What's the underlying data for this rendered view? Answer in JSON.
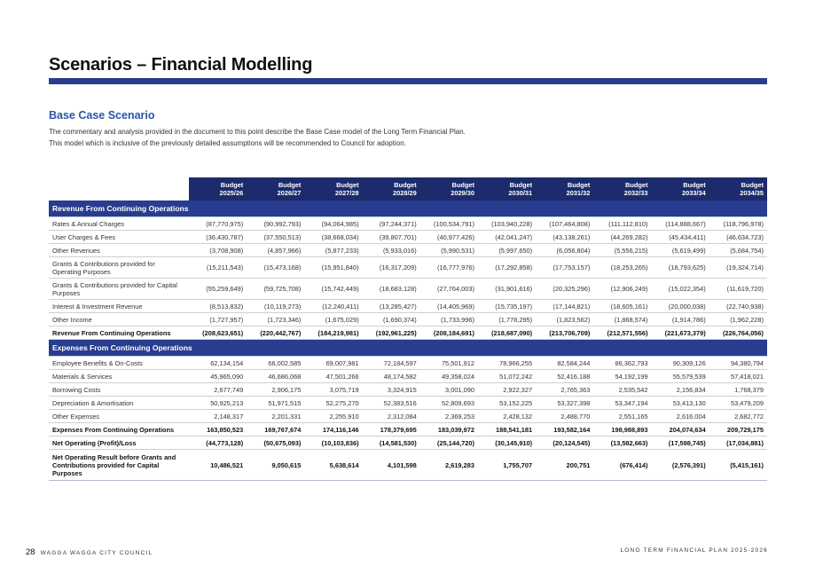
{
  "header": {
    "title": "Scenarios – Financial Modelling"
  },
  "section": {
    "title": "Base Case Scenario",
    "intro": "The commentary and analysis provided in the document to this point describe the Base Case model of the Long Term Financial Plan. This model which is inclusive of the previously detailed assumptions will be recommended to Council for adoption."
  },
  "table": {
    "years": [
      {
        "l1": "Budget",
        "l2": "2025/26"
      },
      {
        "l1": "Budget",
        "l2": "2026/27"
      },
      {
        "l1": "Budget",
        "l2": "2027/28"
      },
      {
        "l1": "Budget",
        "l2": "2028/29"
      },
      {
        "l1": "Budget",
        "l2": "2029/30"
      },
      {
        "l1": "Budget",
        "l2": "2030/31"
      },
      {
        "l1": "Budget",
        "l2": "2031/32"
      },
      {
        "l1": "Budget",
        "l2": "2032/33"
      },
      {
        "l1": "Budget",
        "l2": "2033/34"
      },
      {
        "l1": "Budget",
        "l2": "2034/35"
      }
    ],
    "revenue_heading": "Revenue From Continuing Operations",
    "revenue_rows": [
      {
        "label": "Rates & Annual Charges",
        "values": [
          "(87,770,975)",
          "(90,992,793)",
          "(94,064,985)",
          "(97,244,371)",
          "(100,534,791)",
          "(103,940,228)",
          "(107,464,808)",
          "(111,112,810)",
          "(114,888,667)",
          "(118,796,978)"
        ]
      },
      {
        "label": "User Charges & Fees",
        "values": [
          "(36,430,787)",
          "(37,550,513)",
          "(38,668,034)",
          "(39,807,701)",
          "(40,977,426)",
          "(42,041,247)",
          "(43,138,261)",
          "(44,269,282)",
          "(45,434,411)",
          "(46,634,723)"
        ]
      },
      {
        "label": "Other Revenues",
        "values": [
          "(3,708,908)",
          "(4,857,966)",
          "(5,877,233)",
          "(5,933,016)",
          "(5,990,531)",
          "(5,997,650)",
          "(6,056,804)",
          "(5,556,215)",
          "(5,619,499)",
          "(5,684,754)"
        ]
      },
      {
        "label": "Grants & Contributions provided for Operating Purposes",
        "values": [
          "(15,211,543)",
          "(15,473,168)",
          "(15,951,840)",
          "(16,317,209)",
          "(16,777,976)",
          "(17,292,858)",
          "(17,753,157)",
          "(18,253,265)",
          "(18,793,625)",
          "(19,324,714)"
        ]
      },
      {
        "label": "Grants & Contributions provided for Capital Purposes",
        "values": [
          "(55,259,649)",
          "(59,725,708)",
          "(15,742,449)",
          "(18,683,128)",
          "(27,764,003)",
          "(31,901,616)",
          "(20,325,296)",
          "(12,906,249)",
          "(15,022,354)",
          "(11,619,720)"
        ]
      },
      {
        "label": "Interest & Investment Revenue",
        "values": [
          "(8,513,832)",
          "(10,119,273)",
          "(12,240,411)",
          "(13,285,427)",
          "(14,405,969)",
          "(15,735,197)",
          "(17,144,821)",
          "(18,605,161)",
          "(20,000,038)",
          "(22,740,938)"
        ]
      },
      {
        "label": "Other Income",
        "values": [
          "(1,727,957)",
          "(1,723,346)",
          "(1,675,029)",
          "(1,690,374)",
          "(1,733,996)",
          "(1,778,295)",
          "(1,823,562)",
          "(1,868,574)",
          "(1,914,786)",
          "(1,962,228)"
        ]
      }
    ],
    "revenue_total": {
      "label": "Revenue From Continuing Operations",
      "values": [
        "(208,623,651)",
        "(220,442,767)",
        "(184,219,981)",
        "(192,961,225)",
        "(208,184,691)",
        "(218,687,090)",
        "(213,706,709)",
        "(212,571,556)",
        "(221,673,379)",
        "(226,764,056)"
      ]
    },
    "expenses_heading": "Expenses From Continuing Operations",
    "expense_rows": [
      {
        "label": "Employee Benefits & On-Costs",
        "values": [
          "62,134,154",
          "66,002,585",
          "69,007,981",
          "72,184,597",
          "75,501,912",
          "78,966,255",
          "82,584,244",
          "86,362,793",
          "90,309,126",
          "94,380,794"
        ]
      },
      {
        "label": "Materials & Services",
        "values": [
          "45,965,090",
          "46,686,068",
          "47,501,266",
          "48,174,582",
          "49,358,024",
          "51,072,242",
          "52,416,188",
          "54,192,199",
          "55,579,539",
          "57,418,021"
        ]
      },
      {
        "label": "Borrowing Costs",
        "values": [
          "2,677,749",
          "2,906,175",
          "3,075,719",
          "3,324,915",
          "3,001,090",
          "2,922,327",
          "2,765,363",
          "2,535,542",
          "2,156,834",
          "1,768,379"
        ]
      },
      {
        "label": "Depreciation & Amortisation",
        "values": [
          "50,925,213",
          "51,971,515",
          "52,275,270",
          "52,383,516",
          "52,809,693",
          "53,152,225",
          "53,327,398",
          "53,347,194",
          "53,413,130",
          "53,479,209"
        ]
      },
      {
        "label": "Other Expenses",
        "values": [
          "2,148,317",
          "2,201,331",
          "2,255,910",
          "2,312,084",
          "2,369,253",
          "2,428,132",
          "2,488,770",
          "2,551,165",
          "2,616,004",
          "2,682,772"
        ]
      }
    ],
    "expenses_total": {
      "label": "Expenses From Continuing Operations",
      "values": [
        "163,850,523",
        "169,767,674",
        "174,116,146",
        "178,379,695",
        "183,039,972",
        "188,541,181",
        "193,582,164",
        "198,988,893",
        "204,074,634",
        "209,729,175"
      ]
    },
    "net_operating": {
      "label": "Net Operating (Profit)/Loss",
      "values": [
        "(44,773,128)",
        "(50,675,093)",
        "(10,103,836)",
        "(14,581,530)",
        "(25,144,720)",
        "(30,145,910)",
        "(20,124,545)",
        "(13,582,663)",
        "(17,598,745)",
        "(17,034,881)"
      ]
    },
    "net_result": {
      "label": "Net Operating Result before Grants and Contributions provided for Capital Purposes",
      "values": [
        "10,486,521",
        "9,050,615",
        "5,638,614",
        "4,101,598",
        "2,619,283",
        "1,755,707",
        "200,751",
        "(676,414)",
        "(2,576,391)",
        "(5,415,161)"
      ]
    }
  },
  "footer": {
    "page_number": "28",
    "org": "WAGGA WAGGA CITY COUNCIL",
    "doc": "LONG TERM FINANCIAL PLAN 2025-2026"
  }
}
